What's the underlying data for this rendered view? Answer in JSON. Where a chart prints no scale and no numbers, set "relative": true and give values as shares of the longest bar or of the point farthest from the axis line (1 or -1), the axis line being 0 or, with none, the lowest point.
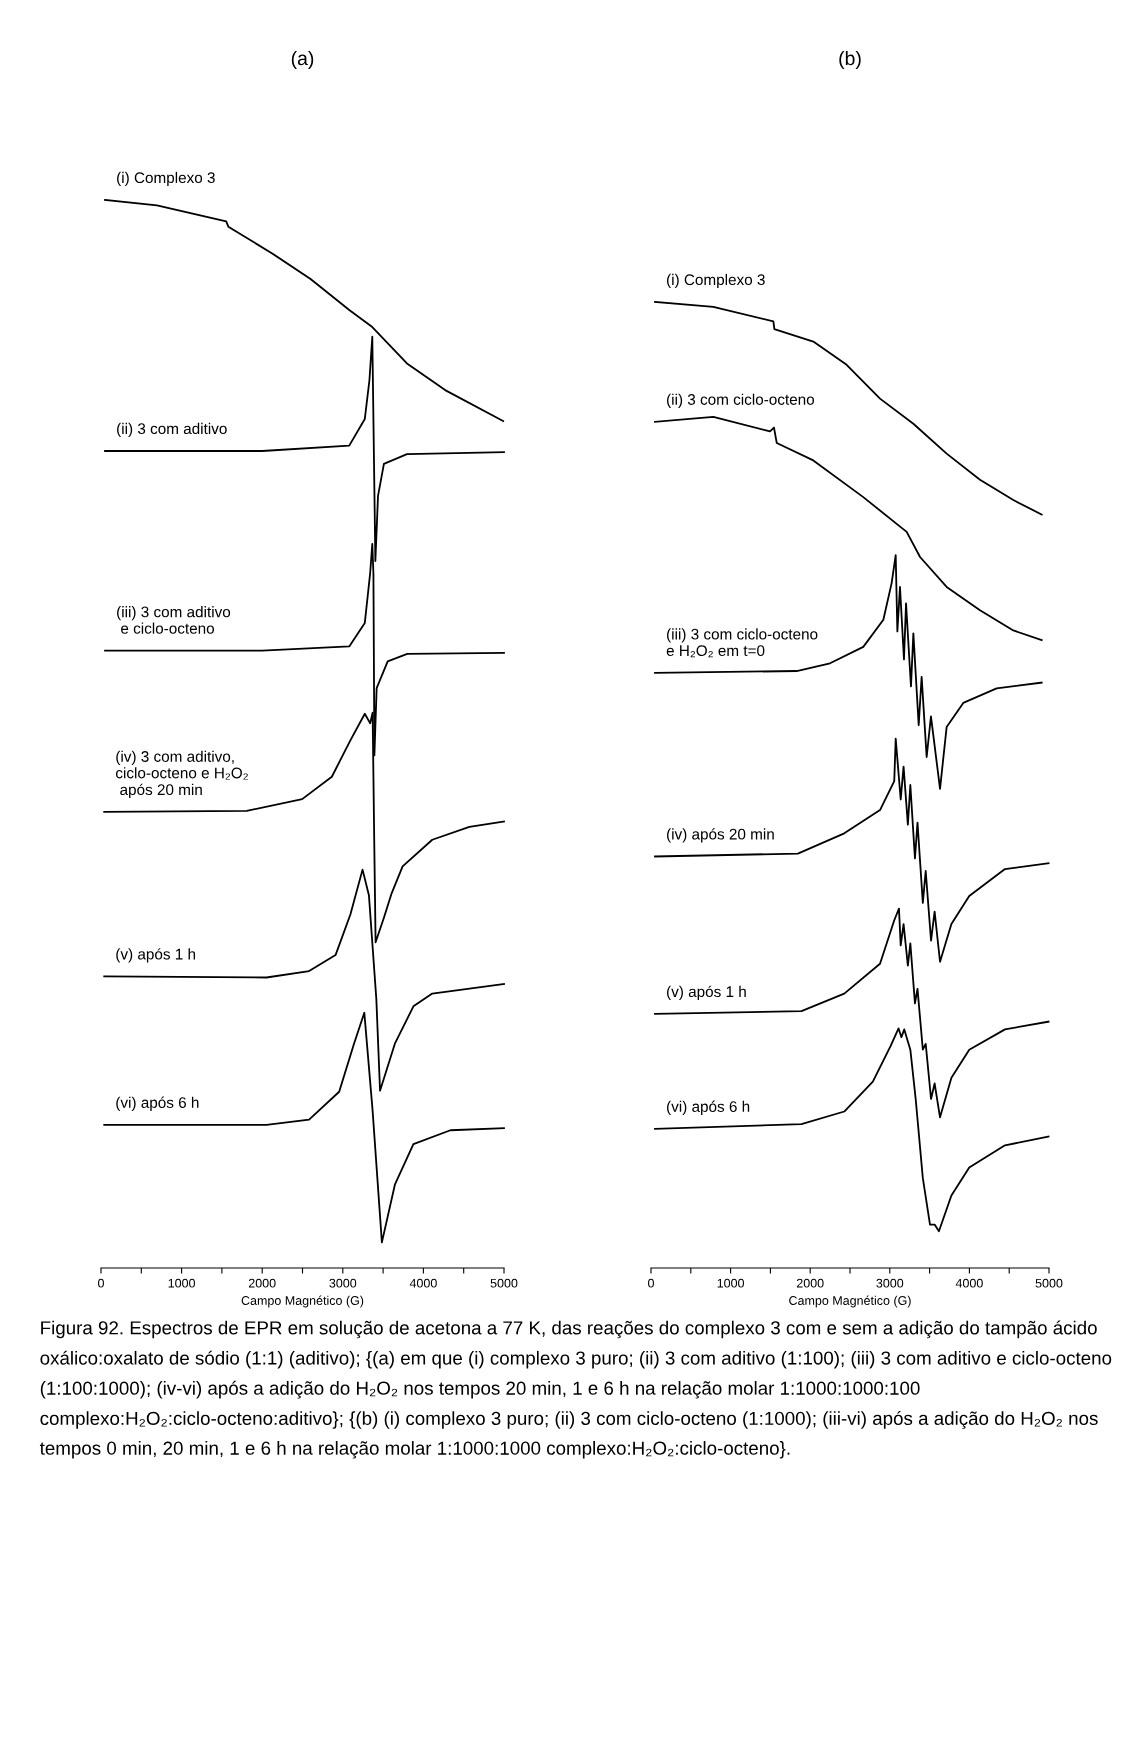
{
  "chart_data": [
    {
      "type": "line",
      "title": "(a)",
      "relative": true,
      "xlabel": "Campo Magnético (G)",
      "xlim": [
        0,
        5000
      ],
      "xticks": [
        0,
        {
          "value": 500,
          "label": null
        },
        1000,
        {
          "value": 1500,
          "label": null
        },
        2000,
        {
          "value": 2500,
          "label": null
        },
        3000,
        {
          "value": 3500,
          "label": null
        },
        4000,
        {
          "value": 4500,
          "label": null
        },
        5000
      ],
      "tick_labels": "x",
      "grid": false,
      "legend": false,
      "series": [
        {
          "name": "(i) Complexo 3",
          "color": "#000000",
          "x": [
            50,
            694,
            1553,
            1580,
            2124,
            2600,
            3080,
            3366,
            3796,
            4270,
            4990
          ],
          "values": [
            1.0,
            0.995,
            0.98,
            0.975,
            0.95,
            0.926,
            0.897,
            0.881,
            0.847,
            0.822,
            0.793
          ]
        },
        {
          "name": "(ii) 3 com aditivo",
          "color": "#000000",
          "x": [
            50,
            2000,
            3080,
            3273,
            3330,
            3366,
            3404,
            3437,
            3510,
            3796,
            5000
          ],
          "values": [
            0.765,
            0.765,
            0.77,
            0.795,
            0.831,
            0.872,
            0.662,
            0.723,
            0.753,
            0.762,
            0.764
          ]
        },
        {
          "name": "(iii) 3 com aditivo\n e ciclo-octeno",
          "color": "#000000",
          "x": [
            50,
            2000,
            3080,
            3273,
            3340,
            3366,
            3380,
            3392,
            3420,
            3557,
            3800,
            5000
          ],
          "values": [
            0.578,
            0.578,
            0.582,
            0.604,
            0.651,
            0.678,
            0.65,
            0.48,
            0.543,
            0.568,
            0.575,
            0.576
          ]
        },
        {
          "name": "(iv) 3 com aditivo,\nciclo-octeno e H₂O₂\n após 20 min",
          "color": "#000000",
          "x": [
            40,
            1807,
            2496,
            2864,
            3094,
            3273,
            3340,
            3370,
            3390,
            3407,
            3510,
            3602,
            3742,
            4110,
            4570,
            5000
          ],
          "values": [
            0.427,
            0.428,
            0.439,
            0.46,
            0.494,
            0.519,
            0.51,
            0.52,
            0.4,
            0.305,
            0.328,
            0.35,
            0.376,
            0.401,
            0.413,
            0.418
          ]
        },
        {
          "name": "(v) após 1 h",
          "color": "#000000",
          "x": [
            40,
            2053,
            2582,
            2910,
            3094,
            3245,
            3324,
            3416,
            3462,
            3646,
            3876,
            4110,
            5000
          ],
          "values": [
            0.273,
            0.272,
            0.278,
            0.293,
            0.331,
            0.373,
            0.349,
            0.252,
            0.166,
            0.21,
            0.245,
            0.257,
            0.266
          ]
        },
        {
          "name": "(vi) após 6 h",
          "color": "#000000",
          "x": [
            40,
            2053,
            2582,
            2955,
            3139,
            3267,
            3369,
            3485,
            3646,
            3876,
            4335,
            5000
          ],
          "values": [
            0.134,
            0.134,
            0.139,
            0.165,
            0.21,
            0.239,
            0.148,
            0.024,
            0.078,
            0.116,
            0.129,
            0.131
          ]
        }
      ],
      "annotations": [
        "Figura 92. Espectros de EPR em solução de acetona a 77 K, das reações do complexo 3 com e sem a adição do tampão ácido oxálico:oxalato de sódio (1:1) (aditivo); {(a) em que (i) complexo 3 puro; (ii) 3 com aditivo (1:100); (iii) 3 com aditivo e ciclo-octeno (1:100:1000); (iv-vi) após a adição do H₂O₂ nos tempos 20 min, 1 e 6 h na relação molar 1:1000:1000:100 complexo:H₂O₂:ciclo-octeno:aditivo}; {(b) (i) complexo 3 puro; (ii) 3 com ciclo-octeno (1:1000); (iii-vi) após a adição do H₂O₂ nos tempos 0 min, 20 min, 1 e 6 h na relação molar 1:1000:1000 complexo:H₂O₂:ciclo-octeno}."
      ]
    },
    {
      "type": "line",
      "title": "(b)",
      "relative": true,
      "xlabel": "Campo Magnético (G)",
      "xlim": [
        0,
        5000
      ],
      "xticks": [
        0,
        {
          "value": 500,
          "label": null
        },
        1000,
        {
          "value": 1500,
          "label": null
        },
        2000,
        {
          "value": 2500,
          "label": null
        },
        3000,
        {
          "value": 3500,
          "label": null
        },
        4000,
        {
          "value": 4500,
          "label": null
        },
        5000
      ],
      "tick_labels": "x",
      "grid": false,
      "legend": false,
      "series": [
        {
          "name": "(i) Complexo 3",
          "color": "#000000",
          "x": [
            50,
            783,
            1537,
            1550,
            2039,
            2458,
            2877,
            3296,
            3714,
            4133,
            4552,
            4908
          ],
          "values": [
            1.0,
            0.995,
            0.98,
            0.972,
            0.959,
            0.935,
            0.9,
            0.874,
            0.843,
            0.816,
            0.795,
            0.78
          ]
        },
        {
          "name": "(ii) 3 com ciclo-octeno",
          "color": "#000000",
          "x": [
            50,
            783,
            1495,
            1545,
            1580,
            2039,
            2667,
            3212,
            3380,
            3714,
            4133,
            4552,
            4908
          ],
          "values": [
            0.876,
            0.881,
            0.866,
            0.87,
            0.854,
            0.836,
            0.798,
            0.762,
            0.736,
            0.705,
            0.681,
            0.66,
            0.65
          ]
        },
        {
          "name": "(iii) 3 com ciclo-octeno\ne H₂O₂ em t=0",
          "color": "#000000",
          "x": [
            50,
            1830,
            2249,
            2667,
            2919,
            3023,
            3074,
            3095,
            3128,
            3178,
            3204,
            3266,
            3296,
            3363,
            3400,
            3463,
            3517,
            3631,
            3714,
            3923,
            4342,
            4908
          ],
          "values": [
            0.616,
            0.618,
            0.626,
            0.643,
            0.671,
            0.709,
            0.738,
            0.659,
            0.705,
            0.63,
            0.688,
            0.602,
            0.657,
            0.562,
            0.612,
            0.529,
            0.571,
            0.496,
            0.56,
            0.585,
            0.6,
            0.606
          ]
        },
        {
          "name": "(iv) após 20 min",
          "color": "#000000",
          "x": [
            50,
            1845,
            2428,
            2877,
            3056,
            3074,
            3137,
            3173,
            3227,
            3258,
            3316,
            3348,
            3415,
            3451,
            3518,
            3563,
            3631,
            3774,
            3998,
            4447,
            4994
          ],
          "values": [
            0.426,
            0.429,
            0.45,
            0.474,
            0.504,
            0.548,
            0.485,
            0.519,
            0.459,
            0.5,
            0.424,
            0.461,
            0.378,
            0.411,
            0.339,
            0.369,
            0.317,
            0.356,
            0.385,
            0.413,
            0.419
          ]
        },
        {
          "name": "(v) após 1 h",
          "color": "#000000",
          "x": [
            50,
            1890,
            2428,
            2877,
            3056,
            3115,
            3137,
            3173,
            3227,
            3258,
            3316,
            3348,
            3415,
            3451,
            3518,
            3563,
            3631,
            3774,
            3998,
            4447,
            4994
          ],
          "values": [
            0.263,
            0.266,
            0.284,
            0.315,
            0.36,
            0.372,
            0.334,
            0.356,
            0.313,
            0.336,
            0.274,
            0.289,
            0.226,
            0.232,
            0.175,
            0.191,
            0.156,
            0.197,
            0.226,
            0.247,
            0.255
          ]
        },
        {
          "name": "(vi) após 6 h",
          "color": "#000000",
          "x": [
            50,
            1890,
            2428,
            2787,
            3011,
            3110,
            3146,
            3182,
            3258,
            3325,
            3415,
            3505,
            3563,
            3617,
            3774,
            3998,
            4447,
            4994
          ],
          "values": [
            0.144,
            0.149,
            0.162,
            0.193,
            0.23,
            0.248,
            0.239,
            0.247,
            0.226,
            0.175,
            0.093,
            0.045,
            0.045,
            0.038,
            0.075,
            0.104,
            0.127,
            0.136
          ]
        }
      ]
    }
  ]
}
